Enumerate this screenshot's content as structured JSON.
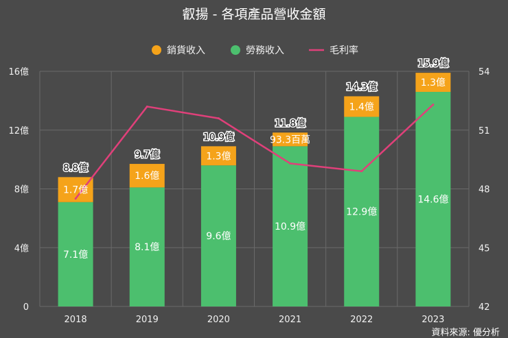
{
  "chart_data": {
    "type": "bar",
    "title": "叡揚 - 各項產品營收金額",
    "categories": [
      "2018",
      "2019",
      "2020",
      "2021",
      "2022",
      "2023"
    ],
    "series": [
      {
        "name": "勞務收入",
        "values": [
          7.1,
          8.1,
          9.6,
          10.9,
          12.9,
          14.6
        ],
        "labels": [
          "7.1億",
          "8.1億",
          "9.6億",
          "10.9億",
          "12.9億",
          "14.6億"
        ],
        "color": "#4cbf6e"
      },
      {
        "name": "銷貨收入",
        "values": [
          1.7,
          1.6,
          1.3,
          0.933,
          1.4,
          1.3
        ],
        "labels": [
          "1.7億",
          "1.6億",
          "1.3億",
          "93.3百萬",
          "1.4億",
          "1.3億"
        ],
        "color": "#f5a31a"
      },
      {
        "name": "毛利率",
        "values": [
          47.5,
          52.2,
          51.6,
          49.3,
          48.9,
          52.3
        ],
        "color": "#e0407a"
      }
    ],
    "totals": [
      8.8,
      9.7,
      10.9,
      11.8,
      14.3,
      15.9
    ],
    "total_labels": [
      "8.8億",
      "9.7億",
      "10.9億",
      "11.8億",
      "14.3億",
      "15.9億"
    ],
    "y_left": {
      "ticks": [
        "0",
        "4億",
        "8億",
        "12億",
        "16億"
      ],
      "values": [
        0,
        4,
        8,
        12,
        16
      ],
      "range": [
        0,
        16
      ]
    },
    "y_right": {
      "ticks": [
        "42",
        "45",
        "48",
        "51",
        "54"
      ],
      "values": [
        42,
        45,
        48,
        51,
        54
      ],
      "range": [
        42,
        54
      ]
    },
    "legend_position": "top-center",
    "grid": true
  },
  "source": "資料來源: 優分析",
  "colors": {
    "background": "#4a4a4a",
    "grid": "#6a6a6a"
  }
}
